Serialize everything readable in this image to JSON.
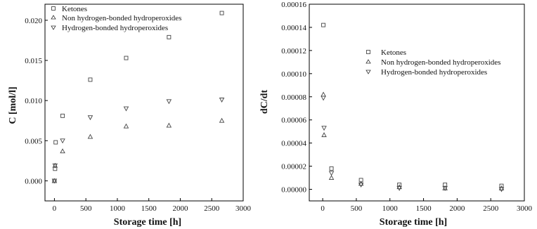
{
  "chart_data": [
    {
      "type": "scatter",
      "xlabel": "Storage time [h]",
      "ylabel": "C [mol/l]",
      "xlim": [
        -150,
        3000
      ],
      "ylim": [
        -0.0025,
        0.022
      ],
      "xticks": [
        "0",
        "500",
        "1000",
        "1500",
        "2000",
        "2500",
        "3000"
      ],
      "xtick_values": [
        0,
        500,
        1000,
        1500,
        2000,
        2500,
        3000
      ],
      "yticks": [
        "0.000",
        "0.005",
        "0.010",
        "0.015",
        "0.020"
      ],
      "ytick_values": [
        0,
        0.005,
        0.01,
        0.015,
        0.02
      ],
      "legend_position": "top-left",
      "series": [
        {
          "name": "Ketones",
          "marker": "square",
          "x": [
            0,
            10,
            20,
            130,
            570,
            1140,
            1820,
            2660
          ],
          "y": [
            0.0,
            0.0015,
            0.0048,
            0.0081,
            0.0126,
            0.0153,
            0.0179,
            0.0209
          ]
        },
        {
          "name": "Non hydrogen-bonded hydroperoxides",
          "marker": "triangle-up",
          "x": [
            0,
            10,
            130,
            570,
            1140,
            1820,
            2660
          ],
          "y": [
            0.0,
            0.0019,
            0.0037,
            0.0055,
            0.0068,
            0.0069,
            0.0075
          ]
        },
        {
          "name": "Hydrogen-bonded hydroperoxides",
          "marker": "triangle-down",
          "x": [
            0,
            10,
            130,
            570,
            1140,
            1820,
            2660
          ],
          "y": [
            0.0,
            0.0019,
            0.005,
            0.0079,
            0.009,
            0.0099,
            0.0101
          ]
        }
      ]
    },
    {
      "type": "scatter",
      "xlabel": "Storage time [h]",
      "ylabel": "dC/dt",
      "xlim": [
        -200,
        3000
      ],
      "ylim": [
        -1e-05,
        0.00016
      ],
      "xticks": [
        "0",
        "500",
        "1000",
        "1500",
        "2000",
        "2500",
        "3000"
      ],
      "xtick_values": [
        0,
        500,
        1000,
        1500,
        2000,
        2500,
        3000
      ],
      "yticks": [
        "0.00000",
        "0.00002",
        "0.00004",
        "0.00006",
        "0.00008",
        "0.00010",
        "0.00012",
        "0.00014",
        "0.00016"
      ],
      "ytick_values": [
        0,
        2e-05,
        4e-05,
        6e-05,
        8e-05,
        0.0001,
        0.00012,
        0.00014,
        0.00016
      ],
      "legend_position": "top-right",
      "series": [
        {
          "name": "Ketones",
          "marker": "square",
          "x": [
            10,
            130,
            570,
            1140,
            1820,
            2660
          ],
          "y": [
            0.000142,
            1.8e-05,
            8e-06,
            4e-06,
            4e-06,
            3e-06
          ]
        },
        {
          "name": "Non hydrogen-bonded hydroperoxides",
          "marker": "triangle-up",
          "x": [
            10,
            20,
            130,
            570,
            1140,
            1820,
            2660
          ],
          "y": [
            8.2e-05,
            4.7e-05,
            1e-05,
            5e-06,
            2e-06,
            1e-06,
            1e-06
          ]
        },
        {
          "name": "Hydrogen-bonded hydroperoxides",
          "marker": "triangle-down",
          "x": [
            10,
            20,
            130,
            570,
            1140,
            1820,
            2660
          ],
          "y": [
            7.9e-05,
            5.3e-05,
            1.4e-05,
            4e-06,
            1e-06,
            1e-06,
            0.0
          ]
        }
      ]
    }
  ]
}
